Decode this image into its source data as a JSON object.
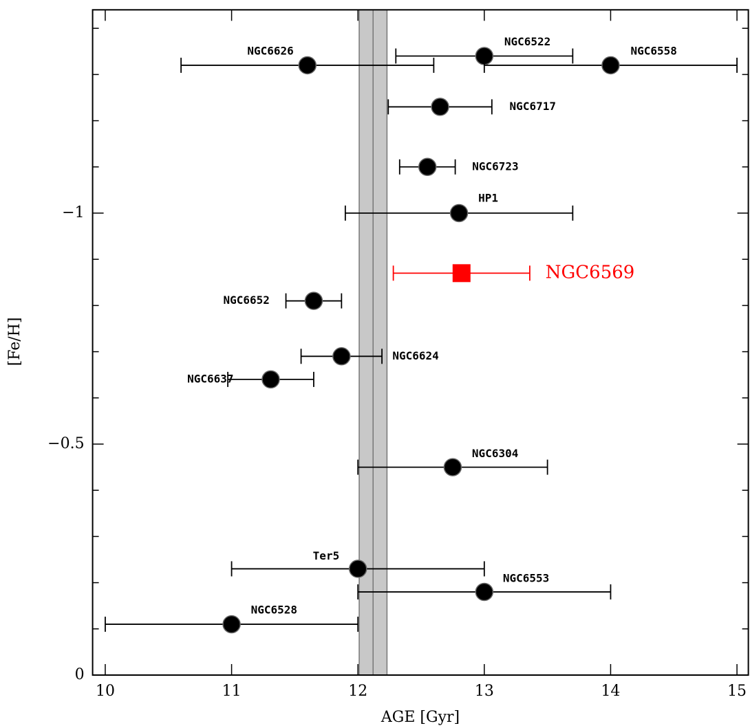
{
  "chart_data": {
    "type": "scatter",
    "x_label": "AGE [Gyr]",
    "y_label": "[Fe/H]",
    "xlim": [
      9.9,
      15.09
    ],
    "ylim": [
      0,
      -1.44
    ],
    "xticks": [
      10,
      11,
      12,
      13,
      14,
      15
    ],
    "yticks": [
      0,
      {
        "value": -0.5,
        "label": "−0.5"
      },
      {
        "value": -1,
        "label": "−1"
      }
    ],
    "yminorticks": [
      -0.1,
      -0.2,
      -0.3,
      -0.4,
      -0.6,
      -0.7,
      -0.8,
      -0.9,
      -1.1,
      -1.2,
      -1.3,
      -1.4
    ],
    "shaded_range": [
      12.01,
      12.23
    ],
    "shaded_color": "#c8c8c8",
    "mean_line": 12.12,
    "points": [
      {
        "label": "NGC6626",
        "x": 11.6,
        "xerr": 1.0,
        "y": -1.32,
        "color": "#000000",
        "marker": "circle"
      },
      {
        "label": "NGC6522",
        "x": 13.0,
        "xerr": 0.7,
        "y": -1.34,
        "color": "#000000",
        "marker": "circle"
      },
      {
        "label": "NGC6558",
        "x": 14.0,
        "xerr": 1.0,
        "y": -1.32,
        "color": "#000000",
        "marker": "circle"
      },
      {
        "label": "NGC6717",
        "x": 12.65,
        "xerr": 0.41,
        "y": -1.23,
        "color": "#000000",
        "marker": "circle"
      },
      {
        "label": "NGC6723",
        "x": 12.55,
        "xerr": 0.22,
        "y": -1.1,
        "color": "#000000",
        "marker": "circle"
      },
      {
        "label": "HP1",
        "x": 12.8,
        "xerr": 0.9,
        "y": -1.0,
        "color": "#000000",
        "marker": "circle"
      },
      {
        "label": "NGC6569",
        "x": 12.82,
        "xerr": 0.54,
        "y": -0.87,
        "color": "#ff0000",
        "marker": "square"
      },
      {
        "label": "NGC6652",
        "x": 11.65,
        "xerr": 0.22,
        "y": -0.81,
        "color": "#000000",
        "marker": "circle"
      },
      {
        "label": "NGC6624",
        "x": 11.87,
        "xerr": 0.32,
        "y": -0.69,
        "color": "#000000",
        "marker": "circle"
      },
      {
        "label": "NGC6637",
        "x": 11.31,
        "xerr": 0.34,
        "y": -0.64,
        "color": "#000000",
        "marker": "circle"
      },
      {
        "label": "NGC6304",
        "x": 12.75,
        "xerr": 0.75,
        "y": -0.45,
        "color": "#000000",
        "marker": "circle"
      },
      {
        "label": "Ter5",
        "x": 12.0,
        "xerr": 1.0,
        "y": -0.23,
        "color": "#000000",
        "marker": "circle"
      },
      {
        "label": "NGC6553",
        "x": 13.0,
        "xerr": 1.0,
        "y": -0.18,
        "color": "#000000",
        "marker": "circle"
      },
      {
        "label": "NGC6528",
        "x": 11.0,
        "xerr": 1.0,
        "y": -0.11,
        "color": "#000000",
        "marker": "circle"
      }
    ]
  }
}
